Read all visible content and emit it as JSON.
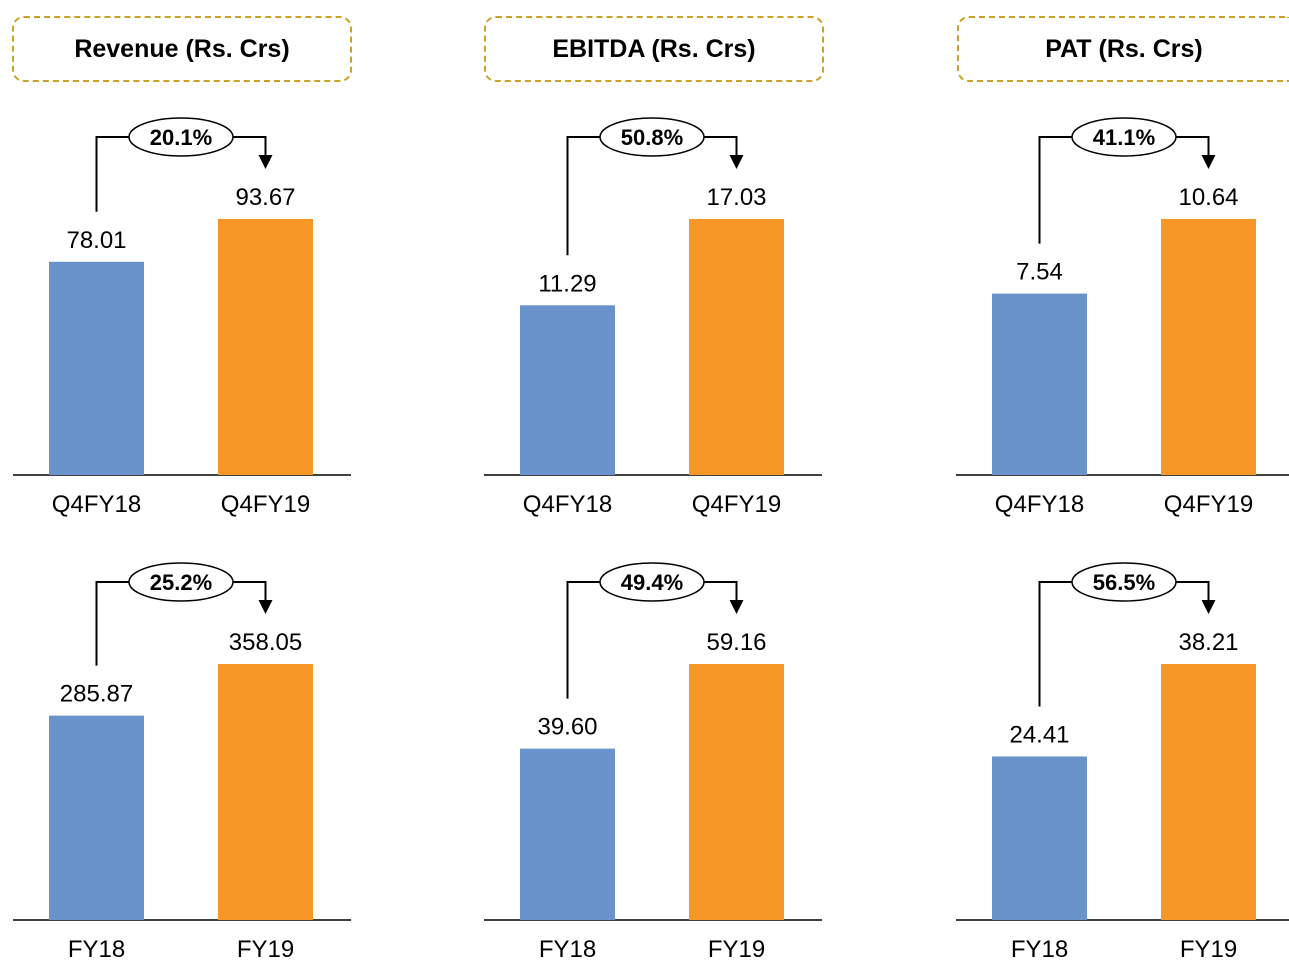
{
  "headers": [
    {
      "title": "Revenue (Rs. Crs)"
    },
    {
      "title": "EBITDA (Rs. Crs)"
    },
    {
      "title": "PAT (Rs. Crs)"
    }
  ],
  "colors": {
    "bar1": "#6a93cb",
    "bar2": "#f79727",
    "header_border": "#c9a227"
  },
  "chart_data": [
    {
      "type": "bar",
      "metric": "Revenue (Rs. Crs)",
      "categories": [
        "Q4FY18",
        "Q4FY19"
      ],
      "values": [
        78.01,
        93.67
      ],
      "labels": [
        "78.01",
        "93.67"
      ],
      "growth": "20.1%"
    },
    {
      "type": "bar",
      "metric": "EBITDA (Rs. Crs)",
      "categories": [
        "Q4FY18",
        "Q4FY19"
      ],
      "values": [
        11.29,
        17.03
      ],
      "labels": [
        "11.29",
        "17.03"
      ],
      "growth": "50.8%"
    },
    {
      "type": "bar",
      "metric": "PAT (Rs. Crs)",
      "categories": [
        "Q4FY18",
        "Q4FY19"
      ],
      "values": [
        7.54,
        10.64
      ],
      "labels": [
        "7.54",
        "10.64"
      ],
      "growth": "41.1%"
    },
    {
      "type": "bar",
      "metric": "Revenue (Rs. Crs)",
      "categories": [
        "FY18",
        "FY19"
      ],
      "values": [
        285.87,
        358.05
      ],
      "labels": [
        "285.87",
        "358.05"
      ],
      "growth": "25.2%"
    },
    {
      "type": "bar",
      "metric": "EBITDA (Rs. Crs)",
      "categories": [
        "FY18",
        "FY19"
      ],
      "values": [
        39.6,
        59.16
      ],
      "labels": [
        "39.60",
        "59.16"
      ],
      "growth": "49.4%"
    },
    {
      "type": "bar",
      "metric": "PAT (Rs. Crs)",
      "categories": [
        "FY18",
        "FY19"
      ],
      "values": [
        24.41,
        38.21
      ],
      "labels": [
        "24.41",
        "38.21"
      ],
      "growth": "56.5%"
    }
  ]
}
